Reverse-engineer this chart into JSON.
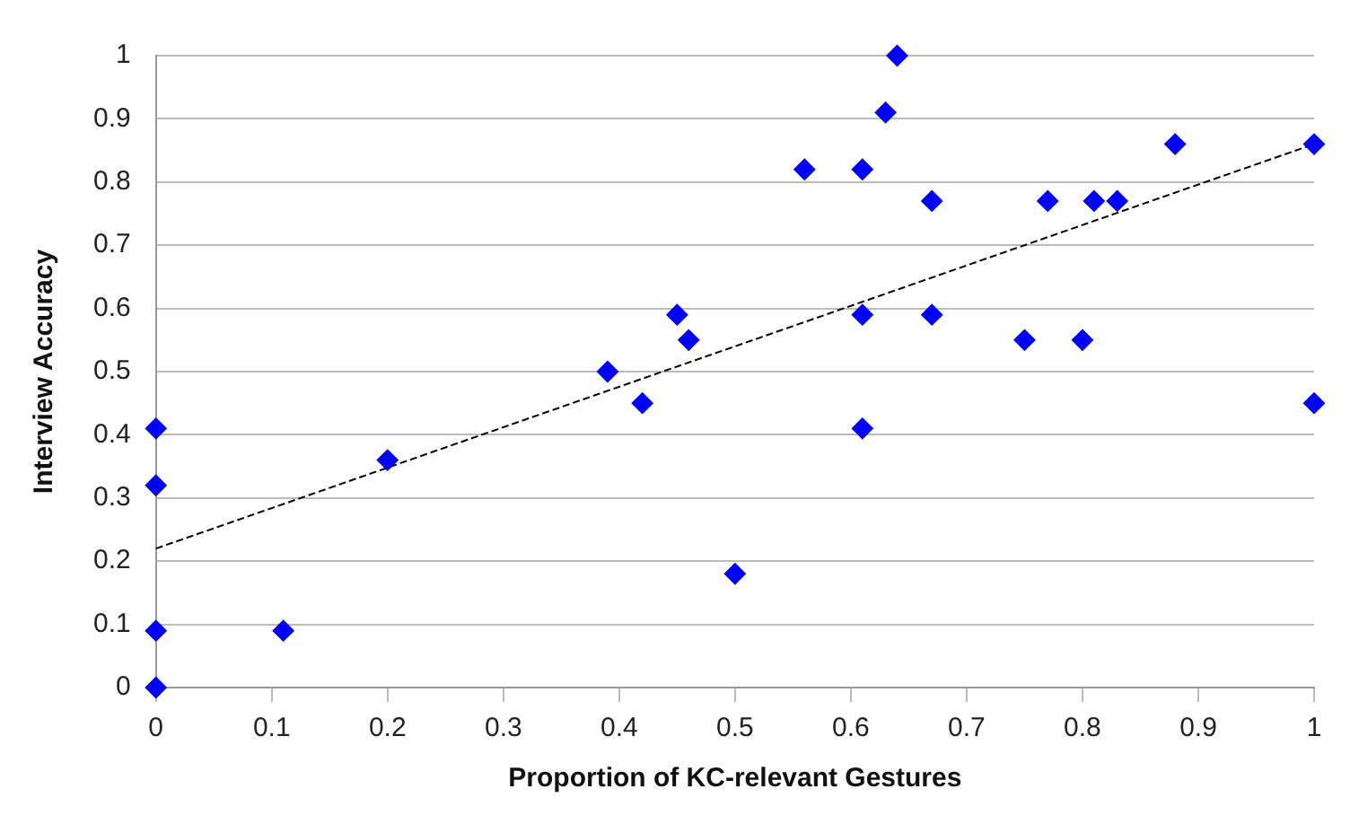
{
  "chart_data": {
    "type": "scatter",
    "xlabel": "Proportion of KC-relevant Gestures",
    "ylabel": "Interview Accuracy",
    "xlim": [
      0,
      1
    ],
    "xticks": [
      0,
      0.1,
      0.2,
      0.3,
      0.4,
      0.5,
      0.6,
      0.7,
      0.8,
      0.9,
      1
    ],
    "ylim": [
      0,
      1
    ],
    "yticks": [
      0,
      0.1,
      0.2,
      0.3,
      0.4,
      0.5,
      0.6,
      0.7,
      0.8,
      0.9,
      1
    ],
    "grid": "y",
    "legend": false,
    "marker": "diamond",
    "series": [
      {
        "type": "scatter",
        "color": "#0000ff",
        "x": [
          0,
          0,
          0,
          0,
          0.11,
          0.2,
          0.39,
          0.42,
          0.45,
          0.46,
          0.5,
          0.56,
          0.61,
          0.61,
          0.61,
          0.64,
          0.63,
          0.67,
          0.67,
          0.75,
          0.77,
          0.8,
          0.81,
          0.83,
          0.88,
          1,
          1
        ],
        "values": [
          0,
          0.09,
          0.32,
          0.41,
          0.09,
          0.36,
          0.5,
          0.45,
          0.59,
          0.55,
          0.18,
          0.82,
          0.82,
          0.41,
          0.59,
          1,
          0.91,
          0.77,
          0.59,
          0.55,
          0.77,
          0.55,
          0.77,
          0.77,
          0.86,
          0.86,
          0.45
        ]
      },
      {
        "type": "line",
        "color": "#000000",
        "line_style": "dashed",
        "marker": "none",
        "x": [
          0,
          1
        ],
        "values": [
          0.22,
          0.86
        ]
      }
    ]
  }
}
